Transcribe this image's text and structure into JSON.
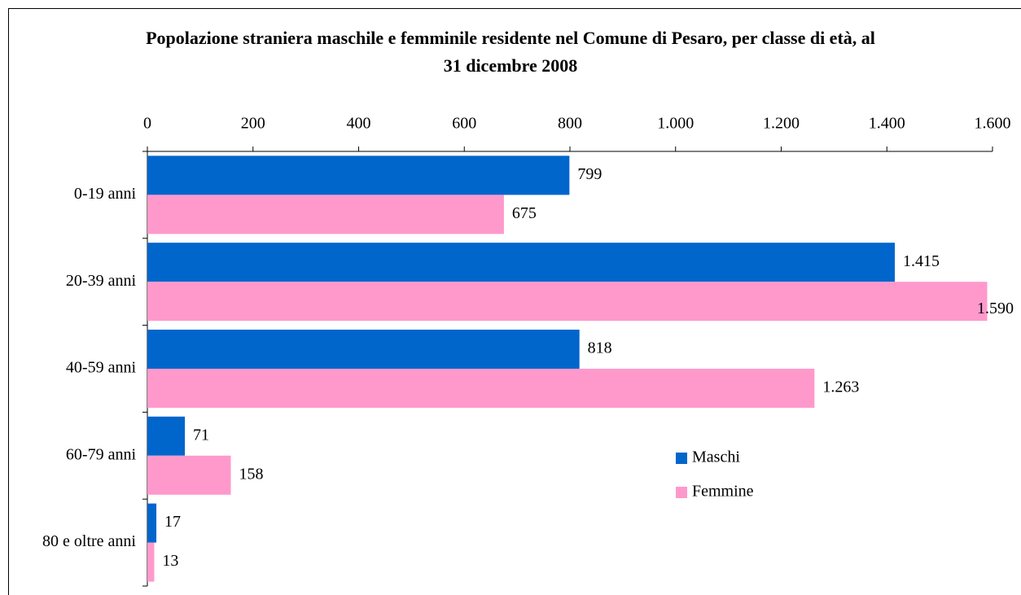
{
  "chart_data": {
    "type": "bar",
    "orientation": "horizontal",
    "title": "Popolazione straniera maschile e femminile residente nel Comune di Pesaro, per classe di età, al 31 dicembre 2008",
    "categories": [
      "0-19 anni",
      "20-39 anni",
      "40-59 anni",
      "60-79 anni",
      "80 e oltre anni"
    ],
    "series": [
      {
        "name": "Maschi",
        "color": "#0066cc",
        "values": [
          799,
          1415,
          818,
          71,
          17
        ],
        "value_labels": [
          "799",
          "1.415",
          "818",
          "71",
          "17"
        ]
      },
      {
        "name": "Femmine",
        "color": "#ff99cc",
        "values": [
          675,
          1590,
          1263,
          158,
          13
        ],
        "value_labels": [
          "675",
          "1.590",
          "1.263",
          "158",
          "13"
        ]
      }
    ],
    "xlim": [
      0,
      1600
    ],
    "xticks": [
      0,
      200,
      400,
      600,
      800,
      {
        "value": 1000,
        "label": "1.000"
      },
      {
        "value": 1200,
        "label": "1.200"
      },
      {
        "value": 1400,
        "label": "1.400"
      },
      {
        "value": 1600,
        "label": "1.600"
      }
    ],
    "legend": "right"
  }
}
